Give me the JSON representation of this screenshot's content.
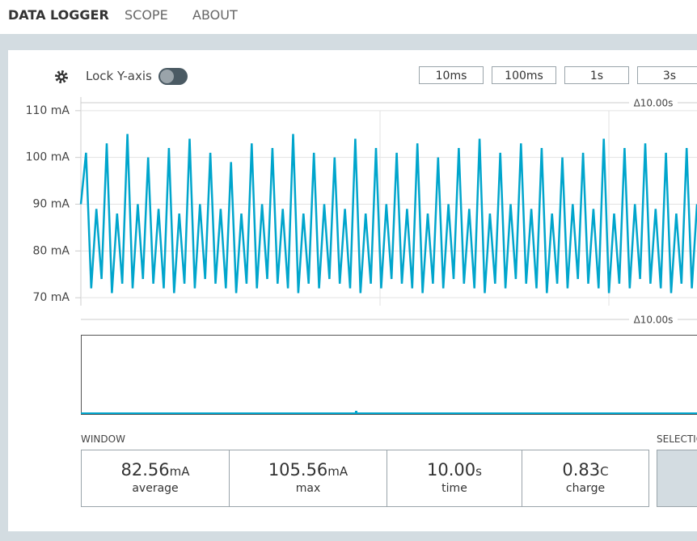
{
  "nav": {
    "items": [
      "DATA LOGGER",
      "SCOPE",
      "ABOUT"
    ]
  },
  "controls": {
    "lock_label": "Lock Y-axis",
    "lock_on": false,
    "time_buttons": [
      "10ms",
      "100ms",
      "1s",
      "3s"
    ]
  },
  "chart_data": {
    "type": "line",
    "color": "#00a5cc",
    "grid": true,
    "span_label": "Δ10.00s",
    "ylim": [
      68.3,
      111.7
    ],
    "yticks": [
      {
        "value": 70,
        "label": "70 mA"
      },
      {
        "value": 80,
        "label": "80 mA"
      },
      {
        "value": 90,
        "label": "90 mA"
      },
      {
        "value": 100,
        "label": "100 mA"
      },
      {
        "value": 110,
        "label": "110 mA"
      }
    ],
    "values": [
      90,
      101,
      72,
      89,
      74,
      103,
      71,
      88,
      73,
      105,
      72,
      90,
      74,
      100,
      73,
      89,
      72,
      102,
      71,
      88,
      73,
      104,
      72,
      90,
      74,
      101,
      73,
      89,
      72,
      99,
      71,
      88,
      73,
      103,
      72,
      90,
      74,
      102,
      73,
      89,
      72,
      105,
      71,
      88,
      73,
      101,
      72,
      90,
      74,
      100,
      73,
      89,
      72,
      104,
      71,
      88,
      73,
      102,
      72,
      90,
      74,
      101,
      73,
      89,
      72,
      103,
      71,
      88,
      73,
      100,
      72,
      90,
      74,
      102,
      73,
      89,
      72,
      104,
      71,
      88,
      73,
      101,
      72,
      90,
      74,
      103,
      73,
      89,
      72,
      102,
      71,
      88,
      73,
      100,
      72,
      90,
      74,
      101,
      73,
      89,
      72,
      104,
      71,
      88,
      73,
      102,
      72,
      90,
      74,
      103,
      73,
      89,
      72,
      101,
      71,
      88,
      73,
      102,
      72,
      90
    ]
  },
  "overview": {
    "span_label": "Δ10.00s"
  },
  "window": {
    "title": "WINDOW",
    "stats": [
      {
        "value": "82.56",
        "unit": "mA",
        "label": "average"
      },
      {
        "value": "105.56",
        "unit": "mA",
        "label": "max"
      },
      {
        "value": "10.00",
        "unit": "s",
        "label": "time"
      },
      {
        "value": "0.83",
        "unit": "C",
        "label": "charge"
      }
    ]
  },
  "selection": {
    "title": "SELECTION"
  }
}
